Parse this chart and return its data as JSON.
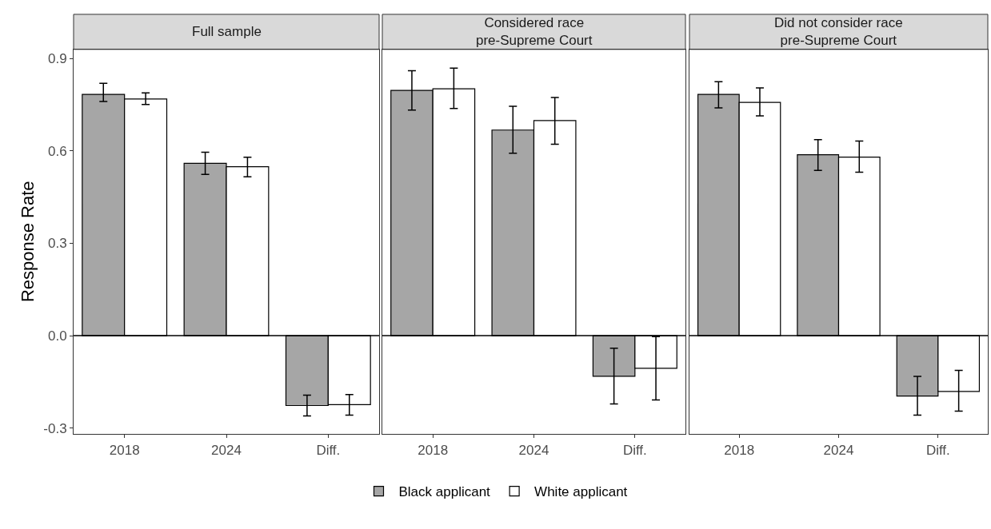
{
  "chart_data": [
    {
      "type": "bar",
      "title": "Full sample",
      "ylabel": "Response Rate",
      "categories": [
        "2018",
        "2024",
        "Diff."
      ],
      "series": [
        {
          "name": "Black applicant",
          "color": "#a6a6a6",
          "values": [
            0.784,
            0.56,
            -0.227
          ],
          "errors": [
            [
              0.761,
              0.82
            ],
            [
              0.524,
              0.596
            ],
            [
              -0.261,
              -0.193
            ]
          ]
        },
        {
          "name": "White applicant",
          "color": "#ffffff",
          "values": [
            0.769,
            0.549,
            -0.224
          ],
          "errors": [
            [
              0.751,
              0.789
            ],
            [
              0.516,
              0.58
            ],
            [
              -0.258,
              -0.191
            ]
          ]
        }
      ],
      "ylim": [
        -0.32,
        0.93
      ],
      "yticks": [
        {
          "value": -0.3,
          "label": "-0.3"
        },
        {
          "value": 0,
          "label": "0.0"
        },
        0.3,
        0.6,
        0.9
      ],
      "ref_lines": [
        {
          "axis": "y",
          "value": 0,
          "color": "#000000"
        }
      ],
      "grid": false,
      "legend": "bottom"
    },
    {
      "type": "bar",
      "title": "Considered race\npre-Supreme Court",
      "categories": [
        "2018",
        "2024",
        "Diff."
      ],
      "series": [
        {
          "name": "Black applicant",
          "color": "#a6a6a6",
          "values": [
            0.797,
            0.668,
            -0.132
          ],
          "errors": [
            [
              0.733,
              0.861
            ],
            [
              0.593,
              0.745
            ],
            [
              -0.222,
              -0.041
            ]
          ]
        },
        {
          "name": "White applicant",
          "color": "#ffffff",
          "values": [
            0.802,
            0.699,
            -0.106
          ],
          "errors": [
            [
              0.738,
              0.869
            ],
            [
              0.622,
              0.774
            ],
            [
              -0.209,
              -0.003
            ]
          ]
        }
      ],
      "ylim": [
        -0.32,
        0.93
      ],
      "tick_labels": "x",
      "ref_lines": [
        {
          "axis": "y",
          "value": 0,
          "color": "#000000"
        }
      ],
      "grid": false,
      "legend": "bottom"
    },
    {
      "type": "bar",
      "title": "Did not consider race\npre-Supreme Court",
      "categories": [
        "2018",
        "2024",
        "Diff."
      ],
      "series": [
        {
          "name": "Black applicant",
          "color": "#a6a6a6",
          "values": [
            0.784,
            0.588,
            -0.196
          ],
          "errors": [
            [
              0.74,
              0.825
            ],
            [
              0.537,
              0.637
            ],
            [
              -0.258,
              -0.132
            ]
          ]
        },
        {
          "name": "White applicant",
          "color": "#ffffff",
          "values": [
            0.758,
            0.58,
            -0.181
          ],
          "errors": [
            [
              0.714,
              0.805
            ],
            [
              0.531,
              0.632
            ],
            [
              -0.245,
              -0.113
            ]
          ]
        }
      ],
      "ylim": [
        -0.32,
        0.93
      ],
      "tick_labels": "x",
      "ref_lines": [
        {
          "axis": "y",
          "value": 0,
          "color": "#000000"
        }
      ],
      "grid": false,
      "legend": "bottom"
    }
  ]
}
